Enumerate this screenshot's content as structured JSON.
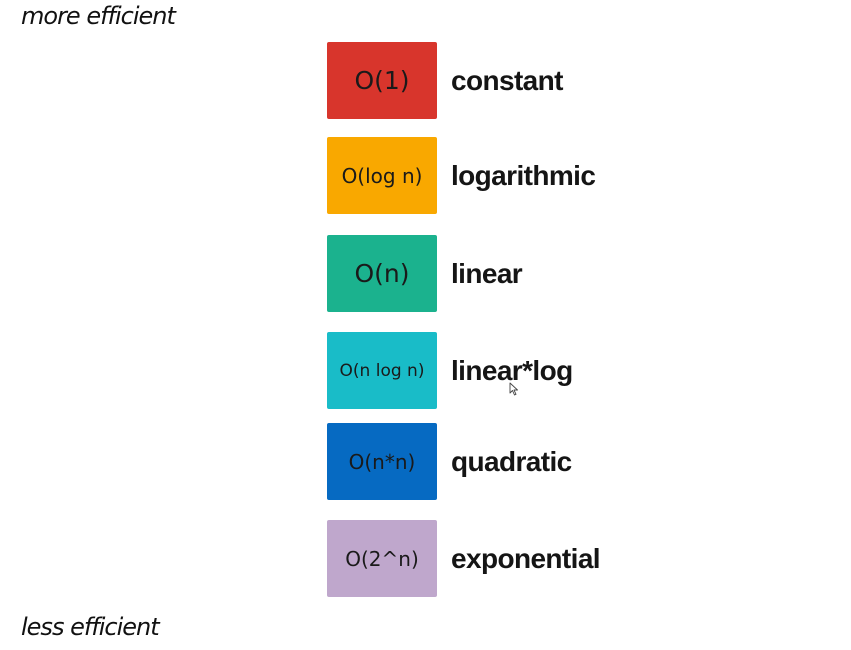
{
  "labels": {
    "top": "more efficient",
    "bottom": "less efficient"
  },
  "complexities": [
    {
      "notation": "O(1)",
      "name": "constant",
      "color": "#d8352c"
    },
    {
      "notation": "O(log n)",
      "name": "logarithmic",
      "color": "#f9a800"
    },
    {
      "notation": "O(n)",
      "name": "linear",
      "color": "#1bb28e"
    },
    {
      "notation": "O(n log n)",
      "name": "linear*log",
      "color": "#19bcc8"
    },
    {
      "notation": "O(n*n)",
      "name": "quadratic",
      "color": "#066ac2"
    },
    {
      "notation": "O(2^n)",
      "name": "exponential",
      "color": "#bfa7cc"
    }
  ],
  "cursor": {
    "icon": "mouse-pointer-icon"
  }
}
